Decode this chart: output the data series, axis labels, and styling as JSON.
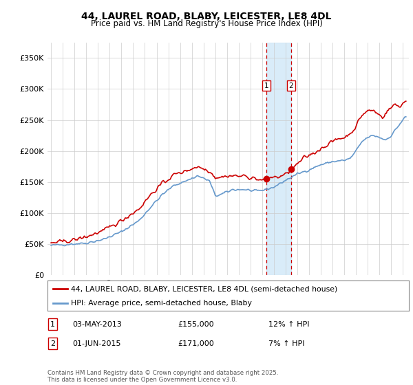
{
  "title": "44, LAUREL ROAD, BLABY, LEICESTER, LE8 4DL",
  "subtitle": "Price paid vs. HM Land Registry's House Price Index (HPI)",
  "ylabel_ticks": [
    "£0",
    "£50K",
    "£100K",
    "£150K",
    "£200K",
    "£250K",
    "£300K",
    "£350K"
  ],
  "ylabel_values": [
    0,
    50000,
    100000,
    150000,
    200000,
    250000,
    300000,
    350000
  ],
  "ylim": [
    0,
    375000
  ],
  "xlim_start": 1994.7,
  "xlim_end": 2025.5,
  "purchase1_date": 2013.34,
  "purchase2_date": 2015.45,
  "line1_label": "44, LAUREL ROAD, BLABY, LEICESTER, LE8 4DL (semi-detached house)",
  "line2_label": "HPI: Average price, semi-detached house, Blaby",
  "footer": "Contains HM Land Registry data © Crown copyright and database right 2025.\nThis data is licensed under the Open Government Licence v3.0.",
  "color_red": "#cc0000",
  "color_blue": "#6699cc",
  "color_shading": "#d0e8f8",
  "background_color": "#ffffff",
  "grid_color": "#cccccc",
  "purchase1_marker_price": 155000,
  "purchase2_marker_price": 171000
}
